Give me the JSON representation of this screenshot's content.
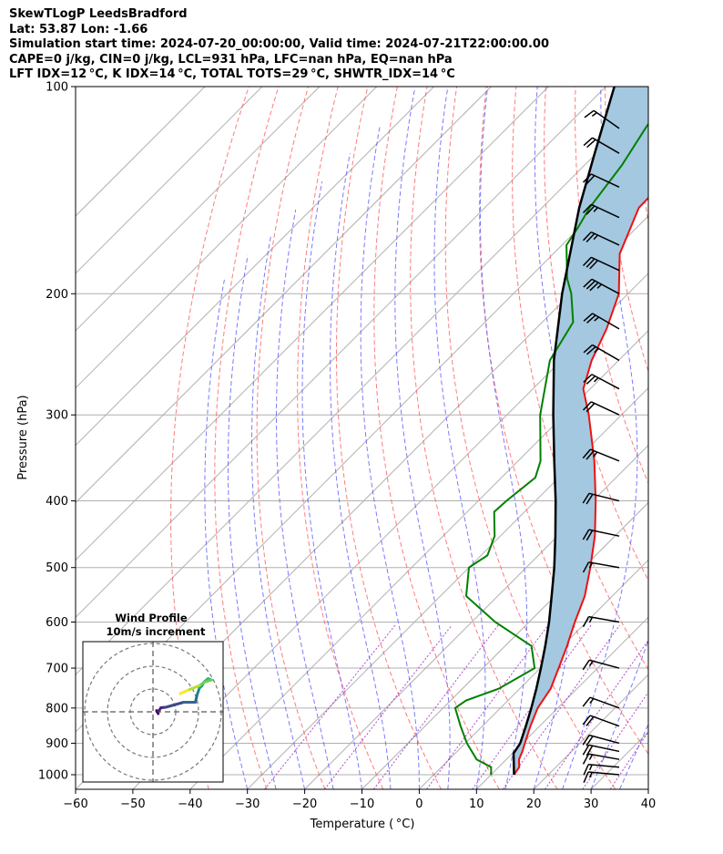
{
  "header": {
    "line1": "SkewTLogP LeedsBradford",
    "line2": "Lat: 53.87   Lon: -1.66",
    "line3": "Simulation start time: 2024-07-20_00:00:00, Valid time: 2024-07-21T22:00:00.00",
    "line4": "CAPE=0 j/kg, CIN=0 j/kg, LCL=931 hPa, LFC=nan hPa, EQ=nan hPa",
    "line5": "LFT IDX=12 °C, K IDX=14 °C, TOTAL TOTS=29 °C, SHWTR_IDX=14 °C"
  },
  "chart_data": {
    "type": "line",
    "chart_kind": "skew-T log-P diagram",
    "xlabel": "Temperature ($^\\circ$C)",
    "xlabel_display": "Temperature ( °C)",
    "ylabel": "Pressure (hPa)",
    "xlim": [
      -60,
      40
    ],
    "ylim": [
      1050,
      100
    ],
    "y_scale": "log",
    "x_ticks": [
      -60,
      -50,
      -40,
      -30,
      -20,
      -10,
      0,
      10,
      20,
      30,
      40
    ],
    "y_ticks": [
      1000,
      900,
      800,
      700,
      600,
      500,
      400,
      300,
      200,
      100
    ],
    "grid": true,
    "colors": {
      "temperature": "#ee1111",
      "dewpoint": "#008000",
      "parcel": "#000000",
      "cape_fill": "#a4c8e0",
      "dry_adiabats": "#ff4f4f",
      "moist_adiabats": "#4d4dff",
      "mixing_ratio": "#9f1fbf",
      "isotherms": "#b0b0b0"
    },
    "series": [
      {
        "role": "temperature",
        "points": [
          {
            "p": 1000,
            "t": 14.0
          },
          {
            "p": 975,
            "t": 13.6
          },
          {
            "p": 950,
            "t": 12.2
          },
          {
            "p": 925,
            "t": 11.4
          },
          {
            "p": 900,
            "t": 10.4
          },
          {
            "p": 850,
            "t": 8.4
          },
          {
            "p": 800,
            "t": 6.5
          },
          {
            "p": 750,
            "t": 5.4
          },
          {
            "p": 700,
            "t": 3.2
          },
          {
            "p": 650,
            "t": 0.8
          },
          {
            "p": 600,
            "t": -2.0
          },
          {
            "p": 550,
            "t": -4.8
          },
          {
            "p": 500,
            "t": -8.8
          },
          {
            "p": 450,
            "t": -13.5
          },
          {
            "p": 400,
            "t": -19.5
          },
          {
            "p": 350,
            "t": -26.7
          },
          {
            "p": 300,
            "t": -35.7
          },
          {
            "p": 275,
            "t": -41.2
          },
          {
            "p": 250,
            "t": -44.7
          },
          {
            "p": 225,
            "t": -47.6
          },
          {
            "p": 200,
            "t": -51.6
          },
          {
            "p": 175,
            "t": -58.4
          },
          {
            "p": 150,
            "t": -63.1
          },
          {
            "p": 125,
            "t": -63.4
          },
          {
            "p": 100,
            "t": -66.2
          }
        ]
      },
      {
        "role": "dewpoint",
        "points": [
          {
            "p": 1000,
            "t": 10.0
          },
          {
            "p": 975,
            "t": 8.7
          },
          {
            "p": 950,
            "t": 4.8
          },
          {
            "p": 900,
            "t": 0.3
          },
          {
            "p": 850,
            "t": -3.8
          },
          {
            "p": 800,
            "t": -7.9
          },
          {
            "p": 780,
            "t": -7.3
          },
          {
            "p": 750,
            "t": -3.7
          },
          {
            "p": 700,
            "t": -1.0
          },
          {
            "p": 650,
            "t": -5.4
          },
          {
            "p": 600,
            "t": -15.9
          },
          {
            "p": 550,
            "t": -25.5
          },
          {
            "p": 500,
            "t": -30.0
          },
          {
            "p": 480,
            "t": -28.9
          },
          {
            "p": 450,
            "t": -31.0
          },
          {
            "p": 415,
            "t": -35.3
          },
          {
            "p": 400,
            "t": -35.1
          },
          {
            "p": 370,
            "t": -34.1
          },
          {
            "p": 350,
            "t": -36.1
          },
          {
            "p": 300,
            "t": -44.2
          },
          {
            "p": 250,
            "t": -52.0
          },
          {
            "p": 220,
            "t": -54.6
          },
          {
            "p": 200,
            "t": -59.9
          },
          {
            "p": 190,
            "t": -63.3
          },
          {
            "p": 170,
            "t": -69.2
          },
          {
            "p": 160,
            "t": -70.3
          },
          {
            "p": 150,
            "t": -71.7
          },
          {
            "p": 130,
            "t": -73.5
          },
          {
            "p": 115,
            "t": -75.8
          },
          {
            "p": 100,
            "t": -78.1
          }
        ]
      },
      {
        "role": "parcel",
        "points": [
          {
            "p": 1000,
            "t": 14.0
          },
          {
            "p": 931,
            "t": 10.2
          },
          {
            "p": 900,
            "t": 9.6
          },
          {
            "p": 850,
            "t": 7.6
          },
          {
            "p": 800,
            "t": 5.4
          },
          {
            "p": 750,
            "t": 2.9
          },
          {
            "p": 700,
            "t": 0.1
          },
          {
            "p": 650,
            "t": -3.0
          },
          {
            "p": 600,
            "t": -6.5
          },
          {
            "p": 550,
            "t": -10.6
          },
          {
            "p": 500,
            "t": -15.1
          },
          {
            "p": 450,
            "t": -20.4
          },
          {
            "p": 400,
            "t": -26.5
          },
          {
            "p": 350,
            "t": -33.7
          },
          {
            "p": 300,
            "t": -41.9
          },
          {
            "p": 250,
            "t": -51.3
          },
          {
            "p": 200,
            "t": -61.5
          },
          {
            "p": 150,
            "t": -73.5
          },
          {
            "p": 125,
            "t": -80.3
          },
          {
            "p": 100,
            "t": -88.5
          }
        ]
      }
    ],
    "wind_barbs": [
      {
        "p": 1000,
        "speed_kt": 15,
        "dir_deg": 265
      },
      {
        "p": 975,
        "speed_kt": 15,
        "dir_deg": 265
      },
      {
        "p": 950,
        "speed_kt": 15,
        "dir_deg": 260
      },
      {
        "p": 925,
        "speed_kt": 20,
        "dir_deg": 258
      },
      {
        "p": 900,
        "speed_kt": 20,
        "dir_deg": 255
      },
      {
        "p": 850,
        "speed_kt": 20,
        "dir_deg": 250
      },
      {
        "p": 800,
        "speed_kt": 15,
        "dir_deg": 250
      },
      {
        "p": 700,
        "speed_kt": 15,
        "dir_deg": 255
      },
      {
        "p": 600,
        "speed_kt": 15,
        "dir_deg": 260
      },
      {
        "p": 500,
        "speed_kt": 15,
        "dir_deg": 260
      },
      {
        "p": 450,
        "speed_kt": 20,
        "dir_deg": 258
      },
      {
        "p": 400,
        "speed_kt": 20,
        "dir_deg": 256
      },
      {
        "p": 350,
        "speed_kt": 25,
        "dir_deg": 248
      },
      {
        "p": 300,
        "speed_kt": 20,
        "dir_deg": 245
      },
      {
        "p": 275,
        "speed_kt": 25,
        "dir_deg": 242
      },
      {
        "p": 250,
        "speed_kt": 25,
        "dir_deg": 240
      },
      {
        "p": 225,
        "speed_kt": 25,
        "dir_deg": 240
      },
      {
        "p": 200,
        "speed_kt": 35,
        "dir_deg": 242
      },
      {
        "p": 185,
        "speed_kt": 30,
        "dir_deg": 245
      },
      {
        "p": 170,
        "speed_kt": 25,
        "dir_deg": 245
      },
      {
        "p": 155,
        "speed_kt": 25,
        "dir_deg": 245
      },
      {
        "p": 140,
        "speed_kt": 20,
        "dir_deg": 245
      },
      {
        "p": 125,
        "speed_kt": 20,
        "dir_deg": 240
      },
      {
        "p": 115,
        "speed_kt": 15,
        "dir_deg": 235
      }
    ],
    "inset": {
      "title_line1": "Wind Profile",
      "title_line2": "10m/s increment",
      "hodograph": [
        {
          "u": 2.3,
          "v": -0.8
        },
        {
          "u": 1.6,
          "v": 0.5
        },
        {
          "u": 2.4,
          "v": 0.2
        },
        {
          "u": 3.5,
          "v": 1.8
        },
        {
          "u": 5.6,
          "v": 2.0
        },
        {
          "u": 9.2,
          "v": 3.0
        },
        {
          "u": 13.5,
          "v": 4.2
        },
        {
          "u": 18.6,
          "v": 4.2
        },
        {
          "u": 19.4,
          "v": 7.5
        },
        {
          "u": 20.4,
          "v": 10.4
        },
        {
          "u": 21.5,
          "v": 11.4
        },
        {
          "u": 22.4,
          "v": 13.1
        },
        {
          "u": 24.2,
          "v": 14.6
        },
        {
          "u": 25.8,
          "v": 14.0
        },
        {
          "u": 22.6,
          "v": 13.0
        },
        {
          "u": 20.4,
          "v": 11.5
        },
        {
          "u": 17.6,
          "v": 10.4
        },
        {
          "u": 15.2,
          "v": 9.4
        },
        {
          "u": 12.0,
          "v": 8.0
        }
      ]
    }
  }
}
